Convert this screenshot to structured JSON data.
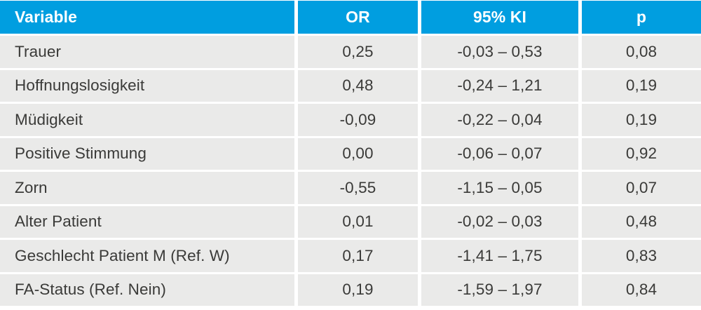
{
  "colors": {
    "header_bg": "#009EE0",
    "row_bg": "#EAEAE9",
    "header_text": "#FFFFFF",
    "body_text": "#3A3A38",
    "page_bg": "#FFFFFF"
  },
  "table": {
    "columns": [
      {
        "label": "Variable"
      },
      {
        "label": "OR"
      },
      {
        "label": "95% KI"
      },
      {
        "label": "p"
      }
    ],
    "rows": [
      {
        "variable": "Trauer",
        "or": "0,25",
        "ci": "-0,03 – 0,53",
        "p": "0,08"
      },
      {
        "variable": "Hoffnungslosigkeit",
        "or": "0,48",
        "ci": "-0,24 – 1,21",
        "p": "0,19"
      },
      {
        "variable": "Müdigkeit",
        "or": "-0,09",
        "ci": "-0,22 – 0,04",
        "p": "0,19"
      },
      {
        "variable": "Positive Stimmung",
        "or": "0,00",
        "ci": "-0,06 – 0,07",
        "p": "0,92"
      },
      {
        "variable": "Zorn",
        "or": "-0,55",
        "ci": "-1,15 – 0,05",
        "p": "0,07"
      },
      {
        "variable": "Alter Patient",
        "or": "0,01",
        "ci": "-0,02 – 0,03",
        "p": "0,48"
      },
      {
        "variable": "Geschlecht Patient M (Ref. W)",
        "or": "0,17",
        "ci": "-1,41 – 1,75",
        "p": "0,83"
      },
      {
        "variable": "FA-Status (Ref. Nein)",
        "or": "0,19",
        "ci": "-1,59 – 1,97",
        "p": "0,84"
      }
    ]
  },
  "chart_data": {
    "type": "table",
    "title": "",
    "columns": [
      "Variable",
      "OR",
      "95% KI",
      "p"
    ],
    "rows": [
      [
        "Trauer",
        "0,25",
        "-0,03 – 0,53",
        "0,08"
      ],
      [
        "Hoffnungslosigkeit",
        "0,48",
        "-0,24 – 1,21",
        "0,19"
      ],
      [
        "Müdigkeit",
        "-0,09",
        "-0,22 – 0,04",
        "0,19"
      ],
      [
        "Positive Stimmung",
        "0,00",
        "-0,06 – 0,07",
        "0,92"
      ],
      [
        "Zorn",
        "-0,55",
        "-1,15 – 0,05",
        "0,07"
      ],
      [
        "Alter Patient",
        "0,01",
        "-0,02 – 0,03",
        "0,48"
      ],
      [
        "Geschlecht Patient M (Ref. W)",
        "0,17",
        "-1,41 – 1,75",
        "0,83"
      ],
      [
        "FA-Status (Ref. Nein)",
        "0,19",
        "-1,59 – 1,97",
        "0,84"
      ]
    ]
  }
}
